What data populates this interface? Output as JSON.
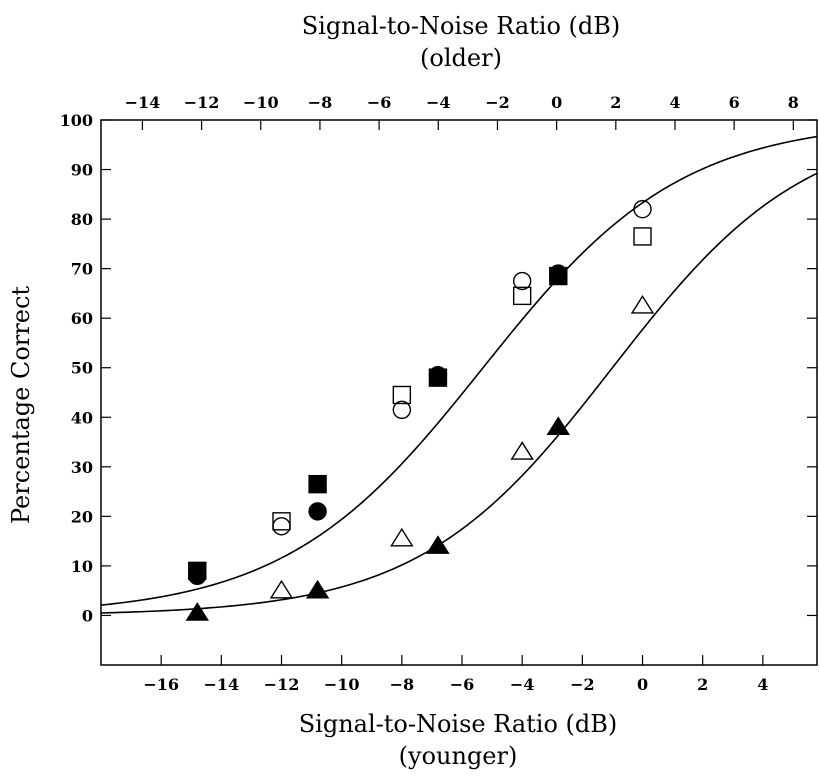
{
  "chart_data": {
    "type": "scatter",
    "title": "",
    "xlabel_bottom": "Signal-to-Noise Ratio (dB)",
    "xlabel_bottom_sub": "(younger)",
    "xlabel_top": "Signal-to-Noise Ratio (dB)",
    "xlabel_top_sub": "(older)",
    "ylabel": "Percentage Correct",
    "xlim_bottom": [
      -18,
      5.8
    ],
    "xlim_top": [
      -15.4,
      8.8
    ],
    "ylim": [
      -10,
      100
    ],
    "x_ticks_bottom": [
      -16,
      -14,
      -12,
      -10,
      -8,
      -6,
      -4,
      -2,
      0,
      2,
      4
    ],
    "x_ticks_top": [
      -14,
      -12,
      -10,
      -8,
      -6,
      -4,
      -2,
      0,
      2,
      4,
      6,
      8
    ],
    "y_ticks": [
      0,
      10,
      20,
      30,
      40,
      50,
      60,
      70,
      80,
      90,
      100
    ],
    "grid": false,
    "series": [
      {
        "marker": "filled-square",
        "x": [
          -14.8,
          -10.8,
          -6.8,
          -2.8
        ],
        "y": [
          9,
          26.5,
          48,
          68.5
        ]
      },
      {
        "marker": "filled-circle",
        "x": [
          -14.8,
          -10.8,
          -6.8,
          -2.8
        ],
        "y": [
          8,
          21,
          48.5,
          69
        ]
      },
      {
        "marker": "open-square",
        "x": [
          -12,
          -8,
          -4,
          0
        ],
        "y": [
          19,
          44.5,
          64.5,
          76.5
        ]
      },
      {
        "marker": "open-circle",
        "x": [
          -12,
          -8,
          -4,
          0
        ],
        "y": [
          18,
          41.5,
          67.5,
          82
        ]
      },
      {
        "marker": "open-triangle",
        "x": [
          -12,
          -8,
          -4,
          0
        ],
        "y": [
          5,
          15.5,
          33,
          62.5
        ]
      },
      {
        "marker": "filled-triangle",
        "x": [
          -14.8,
          -10.8,
          -6.8,
          -2.8
        ],
        "y": [
          0.5,
          5,
          14,
          38
        ]
      }
    ],
    "fitted_curves": [
      {
        "midpoint_x": -5.3,
        "slope": 0.303
      },
      {
        "midpoint_x": -1.0,
        "slope": 0.311
      }
    ]
  }
}
